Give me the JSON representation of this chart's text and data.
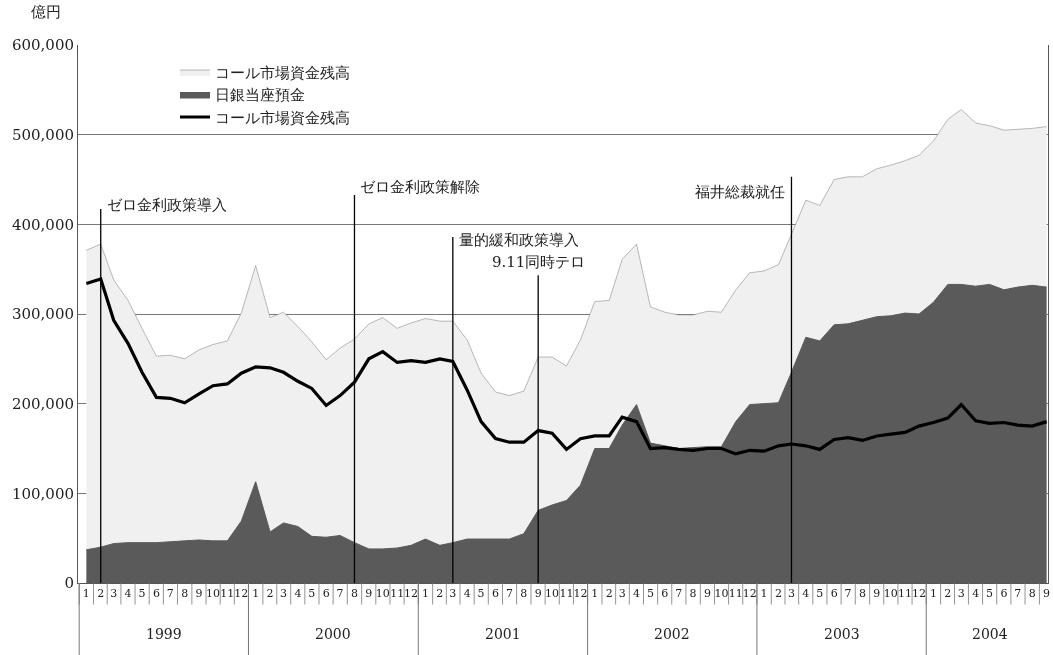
{
  "chart_data": {
    "type": "area",
    "ylabel": "億円",
    "x": [
      "1999-01",
      "1999-02",
      "1999-03",
      "1999-04",
      "1999-05",
      "1999-06",
      "1999-07",
      "1999-08",
      "1999-09",
      "1999-10",
      "1999-11",
      "1999-12",
      "2000-01",
      "2000-02",
      "2000-03",
      "2000-04",
      "2000-05",
      "2000-06",
      "2000-07",
      "2000-08",
      "2000-09",
      "2000-10",
      "2000-11",
      "2000-12",
      "2001-01",
      "2001-02",
      "2001-03",
      "2001-04",
      "2001-05",
      "2001-06",
      "2001-07",
      "2001-08",
      "2001-09",
      "2001-10",
      "2001-11",
      "2001-12",
      "2002-01",
      "2002-02",
      "2002-03",
      "2002-04",
      "2002-05",
      "2002-06",
      "2002-07",
      "2002-08",
      "2002-09",
      "2002-10",
      "2002-11",
      "2002-12",
      "2003-01",
      "2003-02",
      "2003-03",
      "2003-04",
      "2003-05",
      "2003-06",
      "2003-07",
      "2003-08",
      "2003-09",
      "2003-10",
      "2003-11",
      "2003-12",
      "2004-01",
      "2004-02",
      "2004-03",
      "2004-04",
      "2004-05",
      "2004-06",
      "2004-07",
      "2004-08",
      "2004-09"
    ],
    "xlim": [
      "1998-12-14",
      "2004-09-04"
    ],
    "xticks": [
      {
        "value": "1999-01",
        "label": "1"
      },
      {
        "value": "1999-02",
        "label": "2"
      },
      {
        "value": "1999-03",
        "label": "3"
      },
      {
        "value": "1999-04",
        "label": "4"
      },
      {
        "value": "1999-05",
        "label": "5"
      },
      {
        "value": "1999-06",
        "label": "6"
      },
      {
        "value": "1999-07",
        "label": "7"
      },
      {
        "value": "1999-08",
        "label": "8"
      },
      {
        "value": "1999-09",
        "label": "9"
      },
      {
        "value": "1999-10",
        "label": "10"
      },
      {
        "value": "1999-11",
        "label": "11"
      },
      {
        "value": "1999-12",
        "label": "12"
      },
      {
        "value": "2000-01",
        "label": "1"
      },
      {
        "value": "2000-02",
        "label": "2"
      },
      {
        "value": "2000-03",
        "label": "3"
      },
      {
        "value": "2000-04",
        "label": "4"
      },
      {
        "value": "2000-05",
        "label": "5"
      },
      {
        "value": "2000-06",
        "label": "6"
      },
      {
        "value": "2000-07",
        "label": "7"
      },
      {
        "value": "2000-08",
        "label": "8"
      },
      {
        "value": "2000-09",
        "label": "9"
      },
      {
        "value": "2000-10",
        "label": "10"
      },
      {
        "value": "2000-11",
        "label": "11"
      },
      {
        "value": "2000-12",
        "label": "12"
      },
      {
        "value": "2001-01",
        "label": "1"
      },
      {
        "value": "2001-02",
        "label": "2"
      },
      {
        "value": "2001-03",
        "label": "3"
      },
      {
        "value": "2001-04",
        "label": "4"
      },
      {
        "value": "2001-05",
        "label": "5"
      },
      {
        "value": "2001-06",
        "label": "6"
      },
      {
        "value": "2001-07",
        "label": "7"
      },
      {
        "value": "2001-08",
        "label": "8"
      },
      {
        "value": "2001-09",
        "label": "9"
      },
      {
        "value": "2001-10",
        "label": "10"
      },
      {
        "value": "2001-11",
        "label": "11"
      },
      {
        "value": "2001-12",
        "label": "12"
      },
      {
        "value": "2002-01",
        "label": "1"
      },
      {
        "value": "2002-02",
        "label": "2"
      },
      {
        "value": "2002-03",
        "label": "3"
      },
      {
        "value": "2002-04",
        "label": "4"
      },
      {
        "value": "2002-05",
        "label": "5"
      },
      {
        "value": "2002-06",
        "label": "6"
      },
      {
        "value": "2002-07",
        "label": "7"
      },
      {
        "value": "2002-08",
        "label": "8"
      },
      {
        "value": "2002-09",
        "label": "9"
      },
      {
        "value": "2002-10",
        "label": "10"
      },
      {
        "value": "2002-11",
        "label": "11"
      },
      {
        "value": "2002-12",
        "label": "12"
      },
      {
        "value": "2003-01",
        "label": "1"
      },
      {
        "value": "2003-02",
        "label": "2"
      },
      {
        "value": "2003-03",
        "label": "3"
      },
      {
        "value": "2003-04",
        "label": "4"
      },
      {
        "value": "2003-05",
        "label": "5"
      },
      {
        "value": "2003-06",
        "label": "6"
      },
      {
        "value": "2003-07",
        "label": "7"
      },
      {
        "value": "2003-08",
        "label": "8"
      },
      {
        "value": "2003-09",
        "label": "9"
      },
      {
        "value": "2003-10",
        "label": "10"
      },
      {
        "value": "2003-11",
        "label": "11"
      },
      {
        "value": "2003-12",
        "label": "12"
      },
      {
        "value": "2004-01",
        "label": "1"
      },
      {
        "value": "2004-02",
        "label": "2"
      },
      {
        "value": "2004-03",
        "label": "3"
      },
      {
        "value": "2004-04",
        "label": "4"
      },
      {
        "value": "2004-05",
        "label": "5"
      },
      {
        "value": "2004-06",
        "label": "6"
      },
      {
        "value": "2004-07",
        "label": "7"
      },
      {
        "value": "2004-08",
        "label": "8"
      },
      {
        "value": "2004-09",
        "label": "9"
      }
    ],
    "series": [
      {
        "name": "コール市場資金残高",
        "color": "#8c8c8c",
        "values": [
          371000,
          378000,
          338000,
          315000,
          284000,
          253000,
          254000,
          250000,
          260000,
          266000,
          270000,
          301000,
          354000,
          296000,
          302000,
          286000,
          269000,
          249000,
          262000,
          272000,
          289000,
          296000,
          284000,
          290000,
          295000,
          292000,
          292000,
          271000,
          234000,
          213000,
          209000,
          214000,
          252000,
          252000,
          242000,
          271000,
          314000,
          315000,
          361000,
          378000,
          308000,
          302000,
          299000,
          299000,
          303000,
          302000,
          327000,
          346000,
          348000,
          355000,
          389000,
          427000,
          421000,
          450000,
          453000,
          453000,
          462000,
          466000,
          471000,
          477000,
          493000,
          517000,
          528000,
          513000,
          510000,
          505000,
          506000,
          507000,
          509000
        ]
      },
      {
        "name": "日銀当座預金",
        "color": "#5a5a5a",
        "values": [
          37000,
          40000,
          44000,
          45000,
          45000,
          45000,
          46000,
          47000,
          48000,
          47000,
          47000,
          69000,
          113000,
          57000,
          67000,
          63000,
          52000,
          51000,
          53000,
          45000,
          38000,
          38000,
          39000,
          42000,
          49000,
          42000,
          45000,
          49000,
          49000,
          49000,
          49000,
          55000,
          81000,
          87000,
          92000,
          109000,
          150000,
          150000,
          176000,
          199000,
          156000,
          153000,
          150000,
          151000,
          152000,
          152000,
          180000,
          199000,
          200000,
          201000,
          235000,
          274000,
          270000,
          288000,
          289000,
          293000,
          297000,
          298000,
          301000,
          300000,
          313000,
          333000,
          333000,
          331000,
          333000,
          327000,
          330000,
          332000,
          330000
        ]
      },
      {
        "name": "コール市場資金残高",
        "type": "line",
        "color": "#000000",
        "values": [
          334000,
          339000,
          293000,
          267000,
          235000,
          207000,
          206000,
          201000,
          211000,
          220000,
          222000,
          234000,
          241000,
          240000,
          235000,
          225000,
          217000,
          198000,
          209000,
          224000,
          250000,
          258000,
          246000,
          248000,
          246000,
          250000,
          247000,
          215000,
          180000,
          161000,
          157000,
          157000,
          170000,
          167000,
          149000,
          161000,
          164000,
          164000,
          185000,
          180000,
          150000,
          151000,
          149000,
          148000,
          150000,
          150000,
          144000,
          148000,
          147000,
          153000,
          155000,
          153000,
          149000,
          160000,
          162000,
          159000,
          164000,
          166000,
          168000,
          175000,
          179000,
          184000,
          199000,
          181000,
          178000,
          179000,
          176000,
          175000,
          180000
        ]
      }
    ],
    "ylim": [
      0,
      600000
    ],
    "yticks": [
      0,
      {
        "value": 100000,
        "label": "100,000"
      },
      {
        "value": 200000,
        "label": "200,000"
      },
      {
        "value": 300000,
        "label": "300,000"
      },
      {
        "value": 400000,
        "label": "400,000"
      },
      {
        "value": 500000,
        "label": "500,000"
      },
      {
        "value": 600000,
        "label": "600,000"
      }
    ],
    "grid": "y",
    "legend": "top left",
    "line_style": "solid",
    "marker": "none",
    "ref_lines": [
      {
        "axis": "x",
        "value": "1999-02",
        "label": "ゼロ金利政策導入",
        "color": "#000000"
      },
      {
        "axis": "x",
        "value": "2000-08",
        "label": "ゼロ金利政策解除",
        "color": "#000000"
      },
      {
        "axis": "x",
        "value": "2001-03",
        "label": "量的緩和政策導入",
        "color": "#000000"
      },
      {
        "axis": "x",
        "value": "2001-09",
        "label": "9.11同時テロ",
        "color": "#000000"
      },
      {
        "axis": "x",
        "value": "2003-03",
        "label": "福井総裁就任",
        "color": "#000000"
      }
    ],
    "annotations": [
      "1999",
      "2000",
      "2001",
      "2002",
      "2003",
      "2004"
    ]
  }
}
